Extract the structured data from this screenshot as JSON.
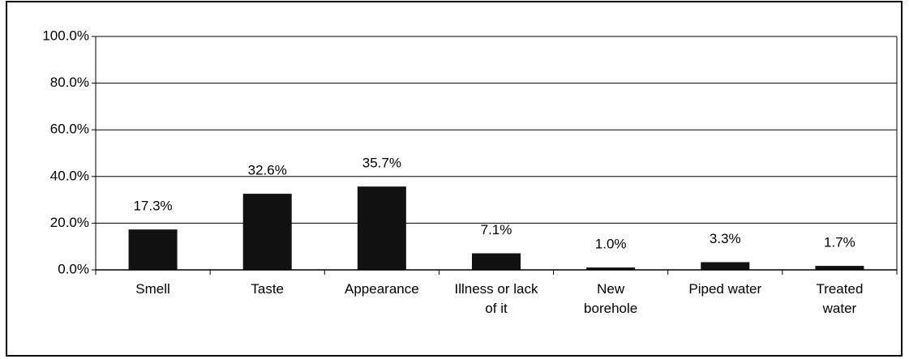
{
  "chart_data": {
    "type": "bar",
    "categories": [
      "Smell",
      "Taste",
      "Appearance",
      "Illness or lack of it",
      "New borehole",
      "Piped water",
      "Treated water"
    ],
    "values": [
      17.3,
      32.6,
      35.7,
      7.1,
      1.0,
      3.3,
      1.7
    ],
    "value_labels": [
      "17.3%",
      "32.6%",
      "35.7%",
      "7.1%",
      "1.0%",
      "3.3%",
      "1.7%"
    ],
    "color": "#111111",
    "ylim": [
      0,
      100
    ],
    "yticks": [
      {
        "value": 0,
        "label": "0.0%"
      },
      {
        "value": 20,
        "label": "20.0%"
      },
      {
        "value": 40,
        "label": "40.0%"
      },
      {
        "value": 60,
        "label": "60.0%"
      },
      {
        "value": 80,
        "label": "80.0%"
      },
      {
        "value": 100,
        "label": "100.0%"
      }
    ],
    "grid": true
  }
}
